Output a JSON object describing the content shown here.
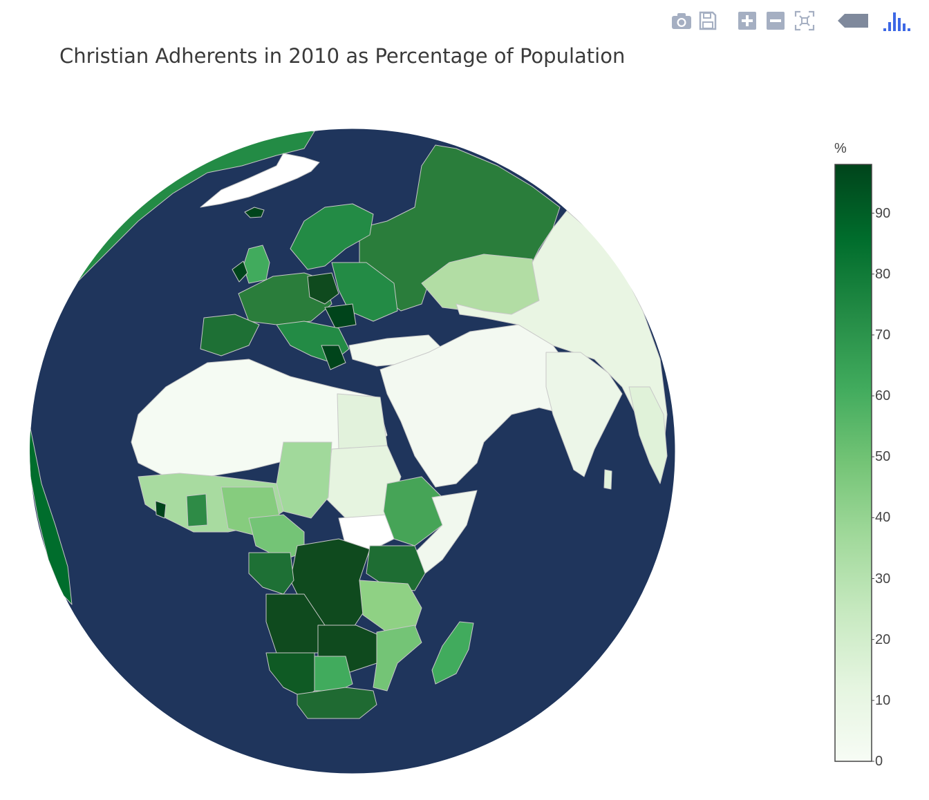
{
  "title": "Christian Adherents in 2010 as Percentage of Population",
  "modebar": {
    "buttons": [
      {
        "name": "camera-icon",
        "color": "#a5afc2"
      },
      {
        "name": "save-icon",
        "color": "#a5afc2"
      },
      {
        "name": "zoom-in-icon",
        "color": "#a5afc2"
      },
      {
        "name": "zoom-out-icon",
        "color": "#a5afc2"
      },
      {
        "name": "reset-view-icon",
        "color": "#a5afc2"
      },
      {
        "name": "hover-label-icon",
        "color": "#7f899c"
      },
      {
        "name": "plotly-logo-icon",
        "color": "#3d68e5"
      }
    ]
  },
  "chart_data": {
    "type": "choropleth",
    "projection": "orthographic",
    "ocean_color": "#1f355c",
    "land_without_data_color": "#ffffff",
    "border_color": "#c8c8c8",
    "colorscale": [
      "#f7fcf5",
      "#e5f5e0",
      "#c7e9c0",
      "#a1d99b",
      "#74c476",
      "#41ab5d",
      "#238b45",
      "#006d2c",
      "#00441b"
    ],
    "colorbar": {
      "title": "%",
      "range": [
        0,
        98
      ],
      "ticks": [
        0,
        10,
        20,
        30,
        40,
        50,
        60,
        70,
        80,
        90
      ]
    }
  }
}
